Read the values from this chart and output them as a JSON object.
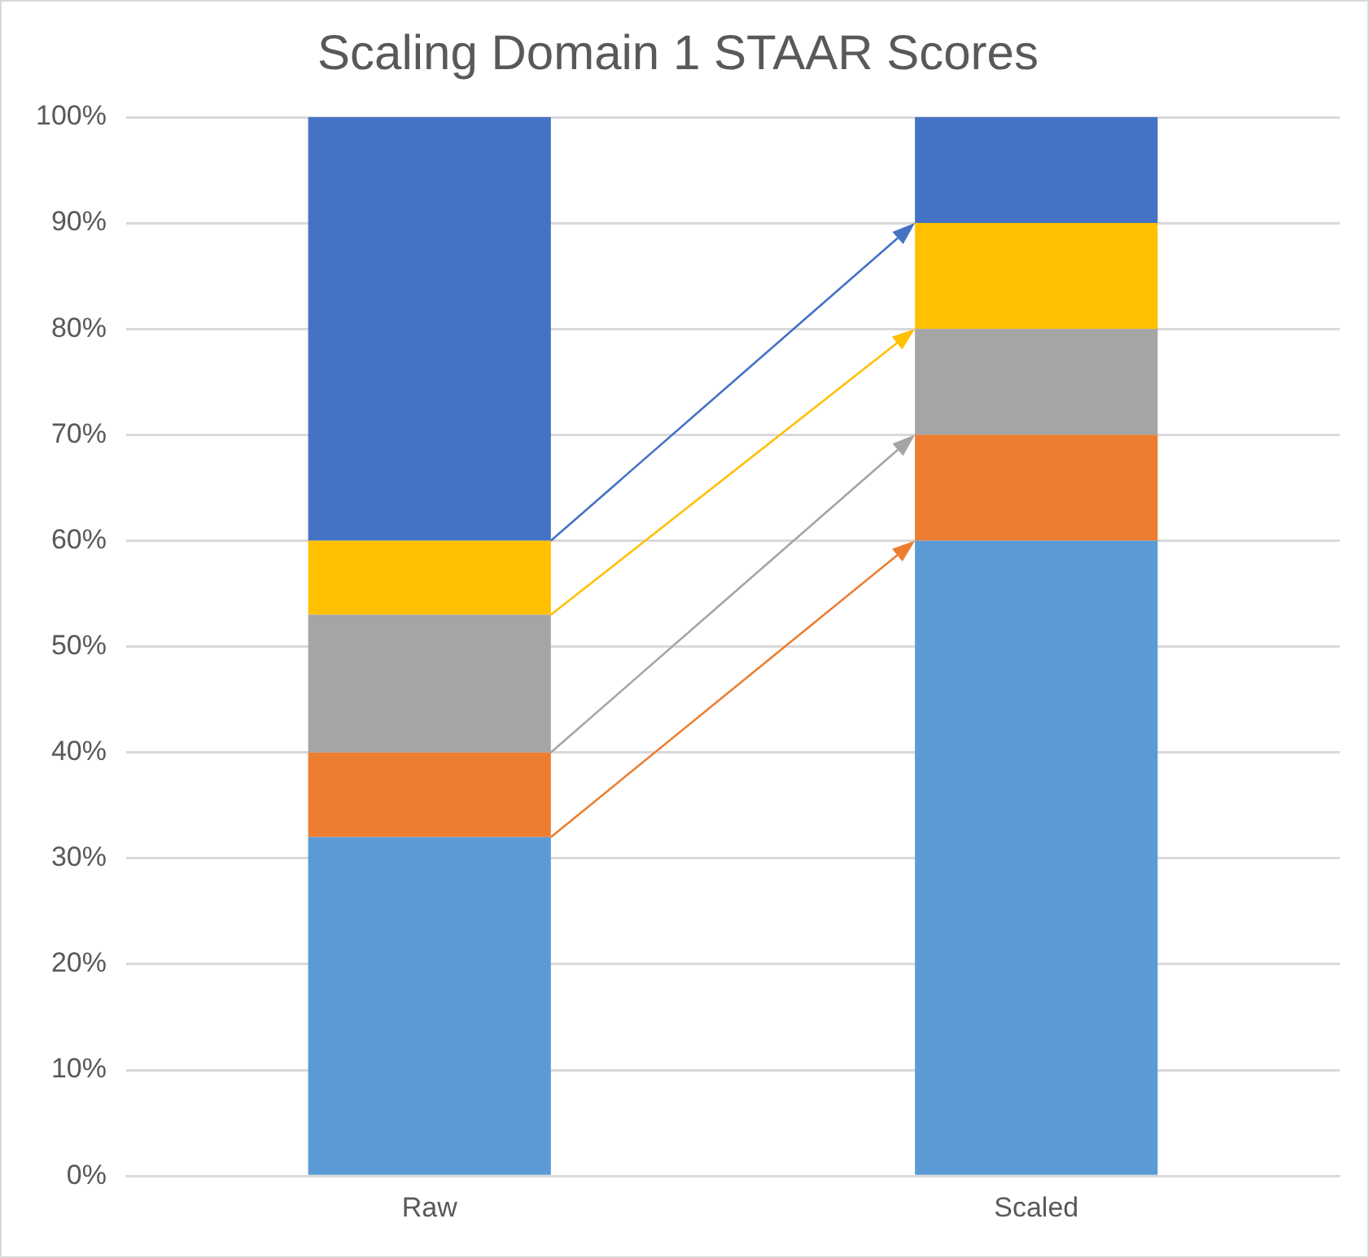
{
  "chart_data": {
    "type": "bar",
    "title": "Scaling Domain 1 STAAR Scores",
    "categories": [
      "Raw",
      "Scaled"
    ],
    "stacked": true,
    "series": [
      {
        "color": "#5b9bd5",
        "values": [
          32,
          60
        ]
      },
      {
        "color": "#ed7d31",
        "values": [
          8,
          10
        ]
      },
      {
        "color": "#a5a5a5",
        "values": [
          13,
          10
        ]
      },
      {
        "color": "#ffc000",
        "values": [
          7,
          10
        ]
      },
      {
        "color": "#4472c4",
        "values": [
          40,
          10
        ]
      }
    ],
    "ylim": [
      0,
      100
    ],
    "yticks": [
      {
        "value": 0,
        "label": "0%"
      },
      {
        "value": 10,
        "label": "10%"
      },
      {
        "value": 20,
        "label": "20%"
      },
      {
        "value": 30,
        "label": "30%"
      },
      {
        "value": 40,
        "label": "40%"
      },
      {
        "value": 50,
        "label": "50%"
      },
      {
        "value": 60,
        "label": "60%"
      },
      {
        "value": 70,
        "label": "70%"
      },
      {
        "value": 80,
        "label": "80%"
      },
      {
        "value": 90,
        "label": "90%"
      },
      {
        "value": 100,
        "label": "100%"
      }
    ],
    "grid": "y"
  }
}
